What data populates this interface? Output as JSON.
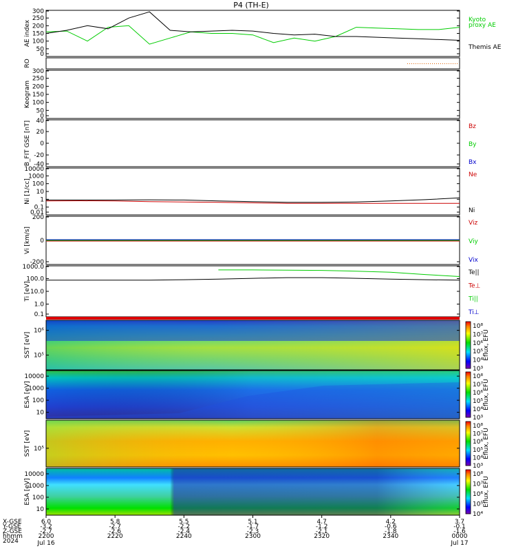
{
  "title": "P4 (TH-E)",
  "chart_data": [
    {
      "type": "line",
      "ylabel": "AE index",
      "yticks": [
        "0",
        "50",
        "100",
        "150",
        "200",
        "250",
        "300"
      ],
      "ylim": [
        0,
        300
      ],
      "x": [
        0,
        6,
        12,
        18,
        24,
        30,
        36,
        42,
        48,
        54,
        60,
        66,
        72,
        78,
        84,
        90,
        96,
        102,
        108,
        114,
        120
      ],
      "series": [
        {
          "name": "Kyoto proxy AE",
          "color": "#00cc00",
          "values": [
            160,
            165,
            100,
            190,
            200,
            80,
            120,
            160,
            150,
            150,
            140,
            90,
            120,
            100,
            130,
            190,
            185,
            180,
            175,
            175,
            190
          ]
        },
        {
          "name": "Themis AE",
          "color": "#000000",
          "values": [
            150,
            170,
            200,
            180,
            250,
            290,
            170,
            160,
            165,
            170,
            165,
            150,
            140,
            145,
            130,
            130,
            125,
            120,
            115,
            110,
            105
          ]
        }
      ],
      "legend": [
        {
          "label": "Kyoto",
          "color": "#00cc00"
        },
        {
          "label": "proxy AE",
          "color": "#00cc00"
        },
        {
          "label": "Themis AE",
          "color": "#000000"
        }
      ]
    },
    {
      "type": "scatter",
      "ylabel": "RO",
      "yticks": [],
      "note": "sparse orange dotted trace at right end"
    },
    {
      "type": "line",
      "ylabel": "Keogram",
      "yticks": [
        "0",
        "50",
        "100",
        "150",
        "200",
        "250",
        "300"
      ],
      "ylim": [
        0,
        300
      ]
    },
    {
      "type": "line",
      "ylabel": "B_FIT GSE [nT]",
      "yticks": [
        "-40",
        "-20",
        "0",
        "20",
        "40"
      ],
      "ylim": [
        -40,
        40
      ],
      "legend": [
        {
          "label": "Bz",
          "color": "#cc0000"
        },
        {
          "label": "By",
          "color": "#00cc00"
        },
        {
          "label": "Bx",
          "color": "#0000cc"
        }
      ]
    },
    {
      "type": "line",
      "ylabel": "Ni [1/cc]",
      "scale": "log",
      "yticks": [
        "10000",
        "1000",
        "100",
        "10",
        "1",
        "0.1",
        "0.01"
      ],
      "ylim": [
        0.01,
        10000
      ],
      "x": [
        0,
        10,
        20,
        30,
        40,
        50,
        60,
        70,
        80,
        90,
        100,
        110,
        120
      ],
      "series": [
        {
          "name": "Ne",
          "color": "#cc0000",
          "values": [
            0.6,
            0.65,
            0.6,
            0.5,
            0.45,
            0.4,
            0.35,
            0.3,
            0.3,
            0.3,
            0.3,
            0.3,
            0.3
          ]
        },
        {
          "name": "Ni",
          "color": "#000000",
          "values": [
            0.8,
            0.8,
            0.8,
            0.85,
            0.8,
            0.6,
            0.5,
            0.4,
            0.4,
            0.45,
            0.6,
            0.9,
            1.5
          ]
        }
      ],
      "legend": [
        {
          "label": "Ne",
          "color": "#cc0000"
        },
        {
          "label": "Ni",
          "color": "#000000"
        }
      ]
    },
    {
      "type": "line",
      "ylabel": "Vi [km/s]",
      "yticks": [
        "200",
        "0",
        "-200"
      ],
      "ylim": [
        -400,
        400
      ],
      "legend": [
        {
          "label": "Viz",
          "color": "#cc0000"
        },
        {
          "label": "Viy",
          "color": "#00cc00"
        },
        {
          "label": "Vix",
          "color": "#0000cc"
        }
      ]
    },
    {
      "type": "line",
      "ylabel": "Ti [eV]",
      "scale": "log",
      "yticks": [
        "1000.0",
        "100.0",
        "10.0",
        "1.0",
        "0.1"
      ],
      "ylim": [
        0.05,
        5000
      ],
      "x": [
        0,
        10,
        20,
        30,
        40,
        50,
        60,
        70,
        80,
        90,
        100,
        110,
        120
      ],
      "series": [
        {
          "name": "Te||",
          "color": "#000000",
          "values": [
            200,
            200,
            200,
            200,
            220,
            250,
            300,
            350,
            350,
            300,
            250,
            220,
            200
          ]
        },
        {
          "name": "Ti||",
          "color": "#00cc00",
          "values": [
            null,
            null,
            null,
            null,
            null,
            2000,
            2000,
            1900,
            1800,
            1500,
            1200,
            700,
            450
          ]
        }
      ],
      "legend": [
        {
          "label": "Te||",
          "color": "#000000"
        },
        {
          "label": "Te⊥",
          "color": "#cc0000"
        },
        {
          "label": "Ti||",
          "color": "#00cc00"
        },
        {
          "label": "Ti⊥",
          "color": "#0000cc"
        }
      ]
    },
    {
      "type": "heatmap",
      "ylabel": "SST [eV]",
      "yticks": [
        "10⁶",
        "10⁵"
      ],
      "colorbar_label": "Eflux, EFU",
      "colorbar_ticks": [
        "10⁸",
        "10⁷",
        "10⁶",
        "10⁵",
        "10⁴",
        "10³"
      ]
    },
    {
      "type": "heatmap",
      "ylabel": "ESA [eV]",
      "yticks": [
        "10000",
        "1000",
        "100",
        "10"
      ],
      "colorbar_label": "Eflux, EFU",
      "colorbar_ticks": [
        "10⁸",
        "10⁷",
        "10⁶",
        "10⁵",
        "10⁴",
        "10³"
      ]
    },
    {
      "type": "heatmap",
      "ylabel": "SST [eV]",
      "yticks": [
        "10⁵"
      ],
      "colorbar_label": "Eflux, EFU",
      "colorbar_ticks": [
        "10⁸",
        "10⁷",
        "10⁶",
        "10⁵",
        "10⁴",
        "10³"
      ]
    },
    {
      "type": "heatmap",
      "ylabel": "ESA [eV]",
      "yticks": [
        "10000",
        "1000",
        "100",
        "10"
      ],
      "colorbar_label": "Eflux, EFU",
      "colorbar_ticks": [
        "10⁸",
        "10⁷",
        "10⁶",
        "10⁵",
        "10⁴"
      ]
    }
  ],
  "x_axis": {
    "row_labels": [
      "X-GSE",
      "Y-GSE",
      "Z-GSE",
      "hhmm",
      "2024"
    ],
    "columns": [
      {
        "x_gse": "6.0",
        "y_gse": "-3.2",
        "z_gse": "-2.7",
        "hhmm": "2200",
        "date": "Jul 16"
      },
      {
        "x_gse": "5.8",
        "y_gse": "-2.7",
        "z_gse": "-2.6",
        "hhmm": "2220",
        "date": ""
      },
      {
        "x_gse": "5.5",
        "y_gse": "-2.2",
        "z_gse": "-2.4",
        "hhmm": "2240",
        "date": ""
      },
      {
        "x_gse": "5.1",
        "y_gse": "-1.7",
        "z_gse": "-2.3",
        "hhmm": "2300",
        "date": ""
      },
      {
        "x_gse": "4.7",
        "y_gse": "-1.2",
        "z_gse": "-2.1",
        "hhmm": "2320",
        "date": ""
      },
      {
        "x_gse": "4.2",
        "y_gse": "-0.6",
        "z_gse": "-1.8",
        "hhmm": "2340",
        "date": ""
      },
      {
        "x_gse": "3.7",
        "y_gse": "-0.1",
        "z_gse": "-1.6",
        "hhmm": "0000",
        "date": "Jul 17"
      }
    ]
  }
}
